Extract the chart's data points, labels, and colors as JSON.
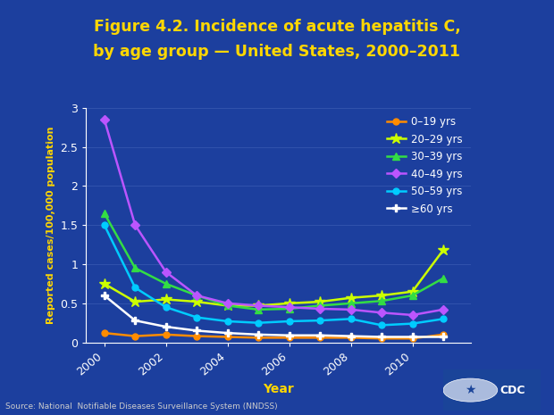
{
  "title_line1": "Figure 4.2. Incidence of acute hepatitis C,",
  "title_line2": "by age group — United States, 2000–2011",
  "xlabel": "Year",
  "ylabel": "Reported cases/100,000 population",
  "source": "Source: National  Notifiable Diseases Surveillance System (NNDSS)",
  "background_outer": "#1c3f9e",
  "background_plot": "#1c3f9e",
  "title_color": "#ffd700",
  "ylabel_color": "#ffd700",
  "xlabel_color": "#ffd700",
  "tick_color": "#ffffff",
  "grid_color": "#4466bb",
  "years": [
    2000,
    2001,
    2002,
    2003,
    2004,
    2005,
    2006,
    2007,
    2008,
    2009,
    2010,
    2011
  ],
  "series": [
    {
      "label": "0–19 yrs",
      "color": "#ff8c00",
      "marker": "o",
      "markersize": 5,
      "data": [
        0.12,
        0.08,
        0.1,
        0.08,
        0.07,
        0.06,
        0.06,
        0.06,
        0.06,
        0.05,
        0.05,
        0.1
      ]
    },
    {
      "label": "20–29 yrs",
      "color": "#ccff00",
      "marker": "*",
      "markersize": 9,
      "data": [
        0.75,
        0.52,
        0.55,
        0.52,
        0.47,
        0.47,
        0.5,
        0.52,
        0.57,
        0.6,
        0.65,
        1.18
      ]
    },
    {
      "label": "30–39 yrs",
      "color": "#33dd44",
      "marker": "^",
      "markersize": 6,
      "data": [
        1.65,
        0.95,
        0.75,
        0.6,
        0.47,
        0.42,
        0.43,
        0.47,
        0.5,
        0.53,
        0.6,
        0.82
      ]
    },
    {
      "label": "40–49 yrs",
      "color": "#bb55ff",
      "marker": "D",
      "markersize": 5,
      "data": [
        2.85,
        1.5,
        0.9,
        0.6,
        0.5,
        0.47,
        0.45,
        0.43,
        0.42,
        0.38,
        0.35,
        0.42
      ]
    },
    {
      "label": "50–59 yrs",
      "color": "#00ccff",
      "marker": "o",
      "markersize": 5,
      "data": [
        1.5,
        0.7,
        0.45,
        0.32,
        0.27,
        0.25,
        0.27,
        0.28,
        0.3,
        0.22,
        0.24,
        0.3
      ]
    },
    {
      "label": "≥60 yrs",
      "color": "#ffffff",
      "marker": "P",
      "markersize": 6,
      "data": [
        0.6,
        0.28,
        0.2,
        0.15,
        0.12,
        0.1,
        0.09,
        0.09,
        0.08,
        0.07,
        0.07,
        0.07
      ]
    }
  ],
  "ylim": [
    0,
    3
  ],
  "yticks": [
    0,
    0.5,
    1.0,
    1.5,
    2.0,
    2.5,
    3.0
  ],
  "ytick_labels": [
    "0",
    "0.5",
    "1",
    "1.5",
    "2",
    "2.5",
    "3"
  ],
  "xticks": [
    2000,
    2002,
    2004,
    2006,
    2008,
    2010
  ],
  "legend_text_color": "#ffffff",
  "source_color": "#cccccc"
}
